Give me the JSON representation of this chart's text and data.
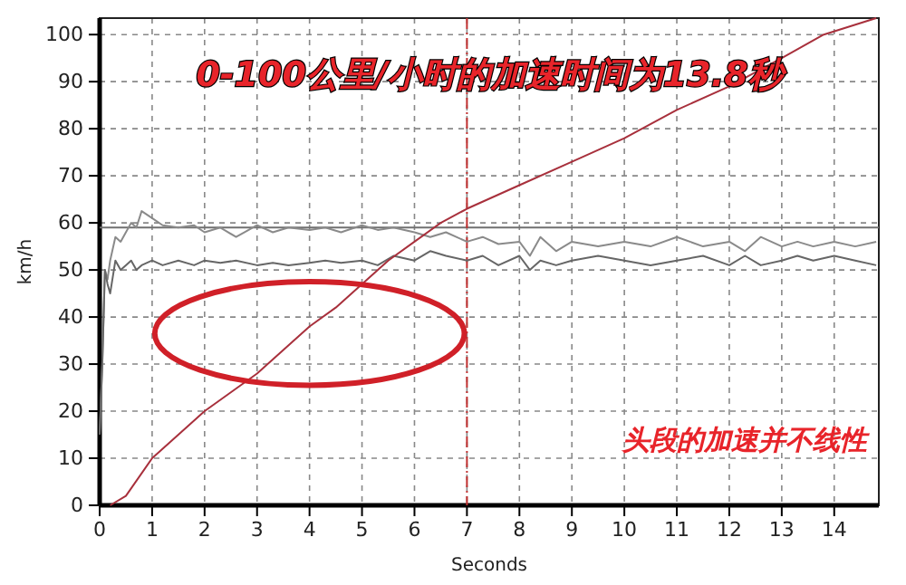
{
  "chart_data": {
    "type": "line",
    "title": "0-100公里/小时的加速时间为13.8秒",
    "xlabel": "Seconds",
    "ylabel": "km/h",
    "annotations": [
      "头段的加速并不线性"
    ],
    "xlim": [
      0,
      14.85
    ],
    "ylim": [
      0,
      103.5
    ],
    "xticks": [
      0,
      1,
      2,
      3,
      4,
      5,
      6,
      7,
      8,
      9,
      10,
      11,
      12,
      13,
      14
    ],
    "yticks": [
      0,
      10,
      20,
      30,
      40,
      50,
      60,
      70,
      80,
      90,
      100
    ],
    "grid": true,
    "series": [
      {
        "color": "#8a8a8a",
        "x": [
          0,
          0.05,
          0.1,
          0.15,
          0.2,
          0.3,
          0.4,
          0.5,
          0.6,
          0.7,
          0.8,
          1.0,
          1.2,
          1.5,
          1.8,
          2.0,
          2.3,
          2.6,
          3.0,
          3.3,
          3.6,
          4.0,
          4.3,
          4.6,
          5.0,
          5.3,
          5.6,
          6.0,
          6.3,
          6.6,
          7.0,
          7.3,
          7.6,
          8.0,
          8.2,
          8.4,
          8.7,
          9.0,
          9.5,
          10.0,
          10.5,
          11.0,
          11.5,
          12.0,
          12.3,
          12.6,
          13.0,
          13.3,
          13.6,
          14.0,
          14.4,
          14.8
        ],
        "values": [
          15,
          30,
          50,
          48,
          52,
          57,
          56,
          58,
          60,
          59,
          62.5,
          61,
          59.5,
          59,
          59.5,
          58,
          59,
          57,
          59.5,
          58,
          59,
          58.5,
          59,
          58,
          59.5,
          58.5,
          59,
          58,
          57,
          58,
          56,
          57,
          55.5,
          56,
          53,
          57,
          54,
          56,
          55,
          56,
          55,
          57,
          55,
          56,
          54,
          57,
          55,
          56,
          55,
          56,
          55,
          56
        ]
      },
      {
        "color": "#666666",
        "x": [
          0,
          0.05,
          0.1,
          0.15,
          0.2,
          0.3,
          0.4,
          0.5,
          0.6,
          0.7,
          0.8,
          1.0,
          1.2,
          1.5,
          1.8,
          2.0,
          2.3,
          2.6,
          3.0,
          3.3,
          3.6,
          4.0,
          4.3,
          4.6,
          5.0,
          5.3,
          5.6,
          6.0,
          6.3,
          6.6,
          7.0,
          7.3,
          7.6,
          8.0,
          8.2,
          8.4,
          8.7,
          9.0,
          9.5,
          10.0,
          10.5,
          11.0,
          11.5,
          12.0,
          12.3,
          12.6,
          13.0,
          13.3,
          13.6,
          14.0,
          14.4,
          14.8
        ],
        "values": [
          15,
          30,
          50,
          47,
          45,
          52,
          50,
          51,
          52,
          50,
          51,
          52,
          51,
          52,
          51,
          52,
          51.5,
          52,
          51,
          51.5,
          51,
          51.5,
          52,
          51.5,
          52,
          51,
          53,
          52,
          54,
          53,
          52,
          53,
          51,
          53,
          50,
          52,
          51,
          52,
          53,
          52,
          51,
          52,
          53,
          51,
          53,
          51,
          52,
          53,
          52,
          53,
          52,
          51
        ]
      },
      {
        "color": "#a8303c",
        "x": [
          0.2,
          0.5,
          1,
          1.5,
          2,
          2.5,
          3,
          3.5,
          4,
          4.5,
          5,
          5.5,
          6,
          6.5,
          7,
          8,
          9,
          10,
          11,
          12,
          13,
          13.8,
          14.8
        ],
        "values": [
          0,
          2,
          10,
          15,
          20,
          24,
          28,
          33,
          38,
          42,
          47,
          52,
          56,
          60,
          63,
          68,
          73,
          78,
          84,
          89,
          95,
          100,
          103.5
        ]
      }
    ],
    "ref_lines": [
      {
        "axis": "y",
        "value": 59,
        "color": "#707070",
        "line_style": "solid"
      },
      {
        "axis": "x",
        "value": 7,
        "color": "#c03030",
        "line_style": "dashed"
      }
    ]
  }
}
